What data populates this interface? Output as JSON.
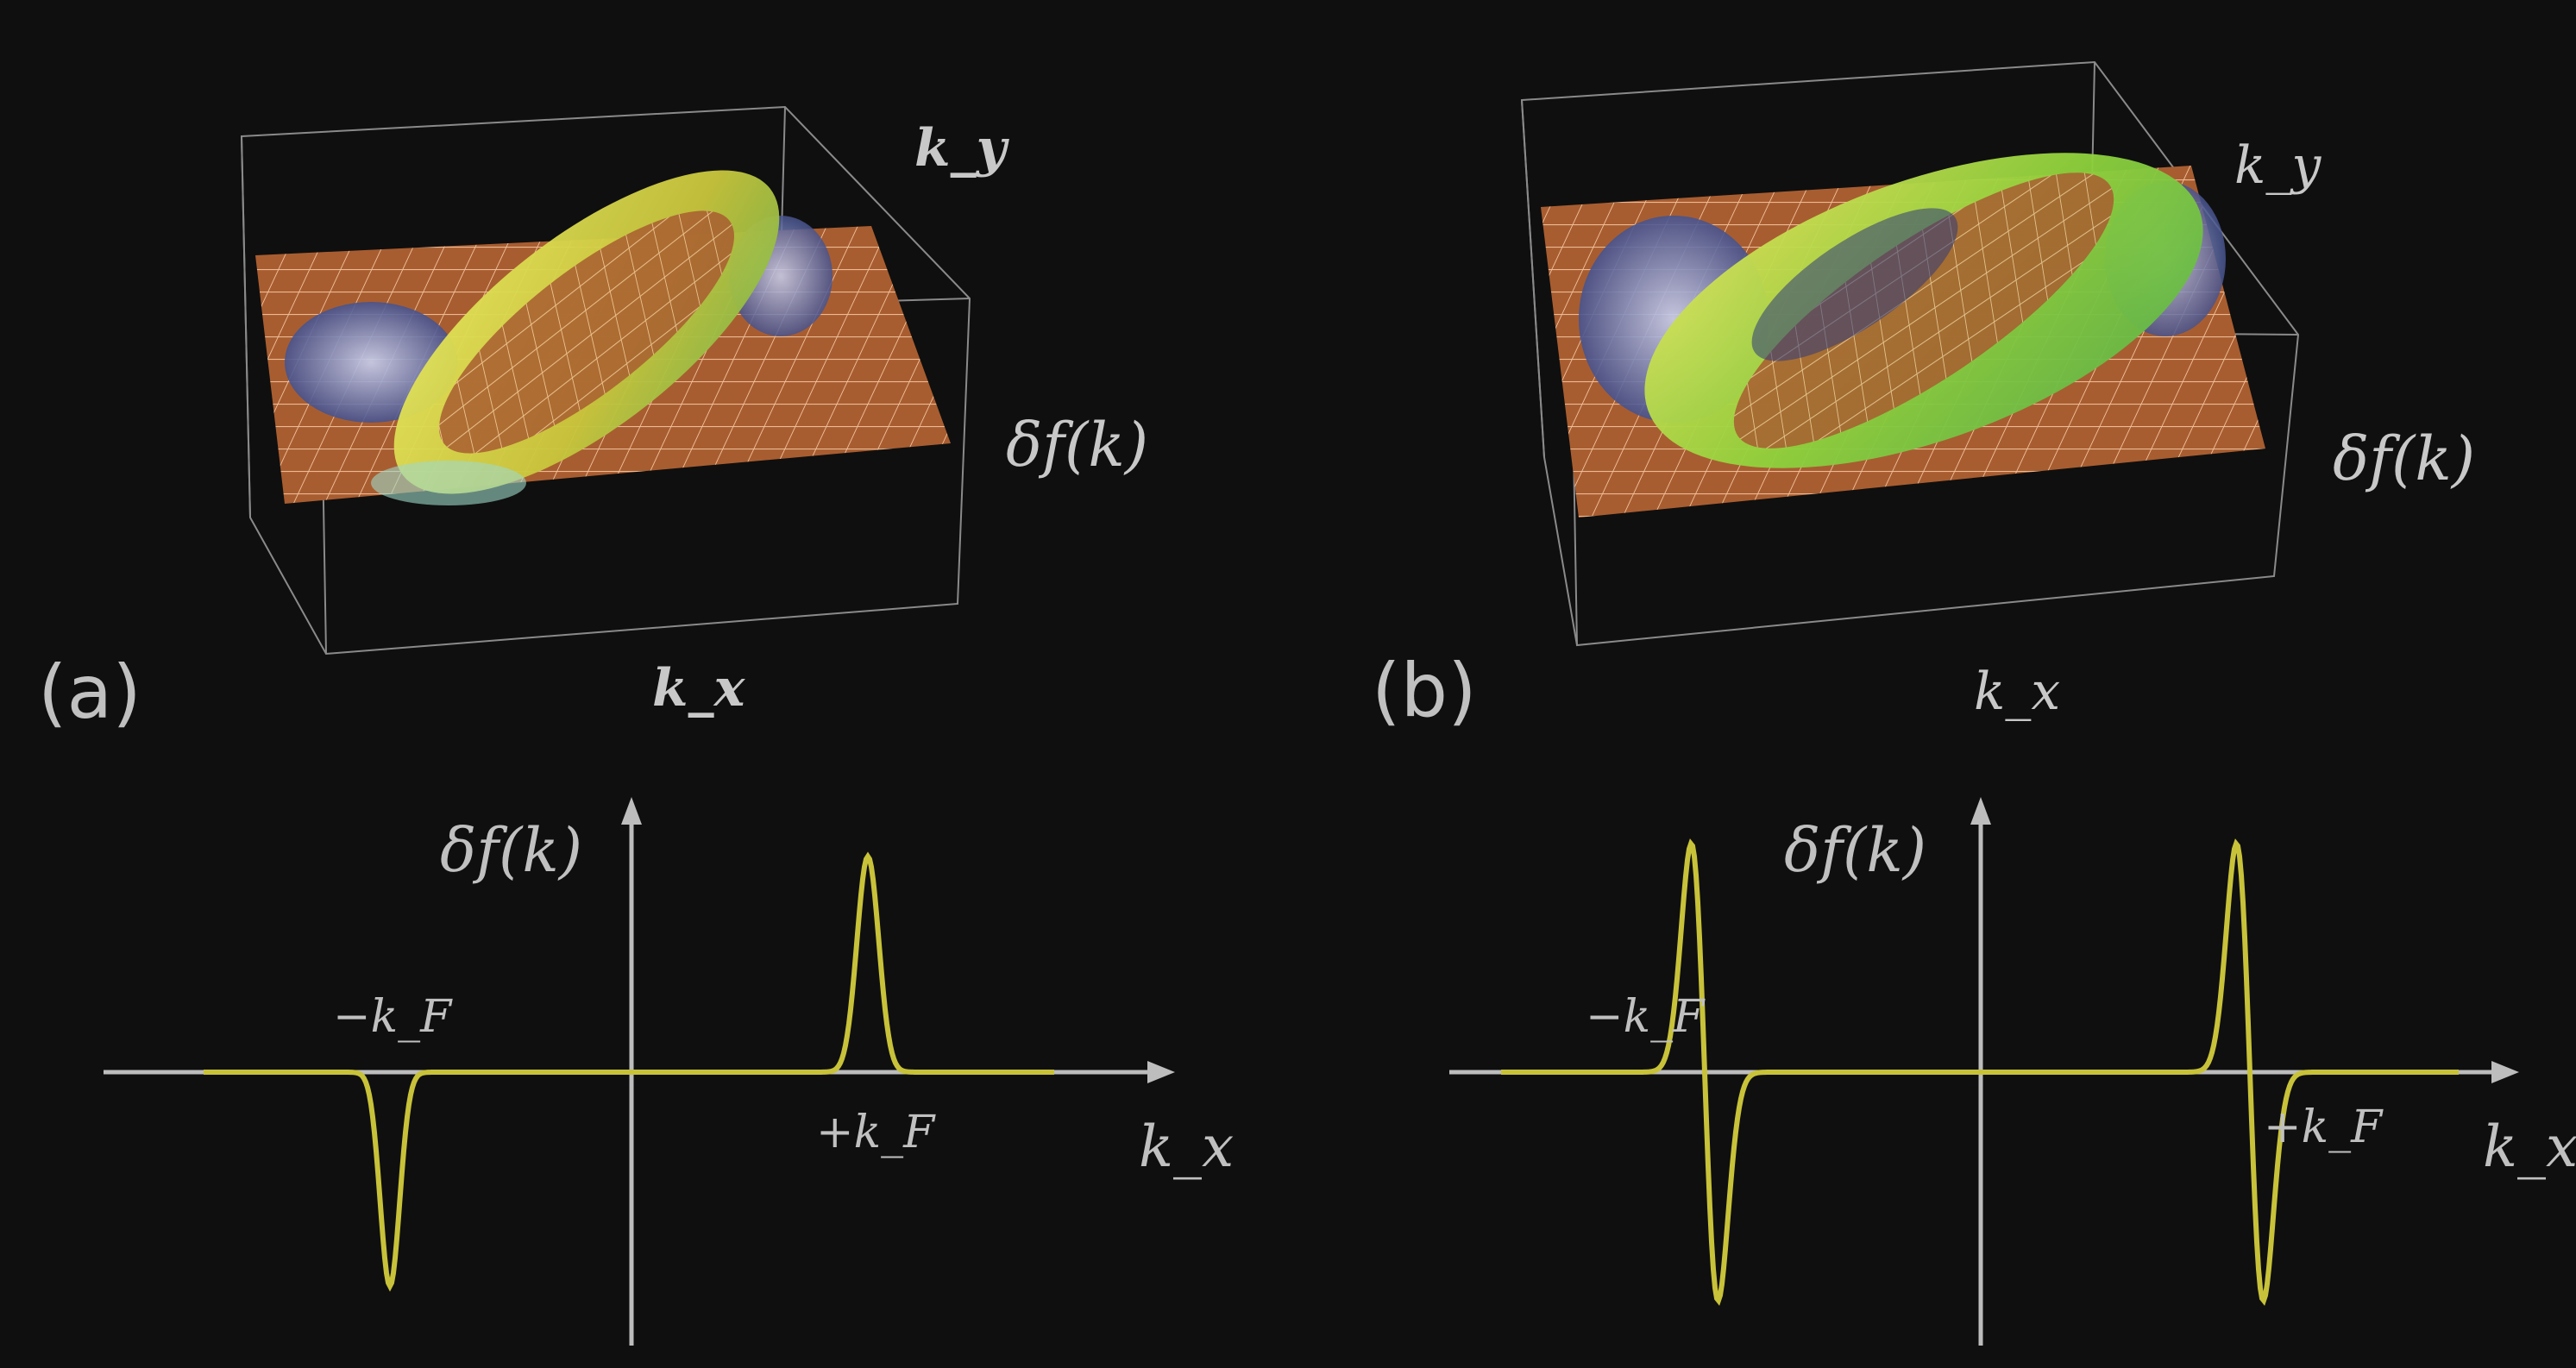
{
  "panels": [
    {
      "label": "(a)",
      "surface": {
        "ky_label": "k_y",
        "kx_label": "k_x",
        "z_label": "δf(k)"
      },
      "profile": {
        "y_label": "δf(k)",
        "x_label": "k_x",
        "left_label": "−k_F",
        "right_label": "+k_F"
      }
    },
    {
      "label": "(b)",
      "surface": {
        "ky_label": "k_y",
        "kx_label": "k_x",
        "z_label": "δf(k)"
      },
      "profile": {
        "y_label": "δf(k)",
        "x_label": "k_x",
        "left_label": "−k_F",
        "right_label": "+k_F"
      }
    }
  ],
  "colors": {
    "background": "#0f0f0f",
    "axis": "#bdbdbd",
    "curve": "#c8c23a",
    "mesh": "#b56a3c",
    "surface_yellow": "#d9dd4a",
    "surface_green": "#7fd23c",
    "surface_blue": "#3a4b8c"
  }
}
